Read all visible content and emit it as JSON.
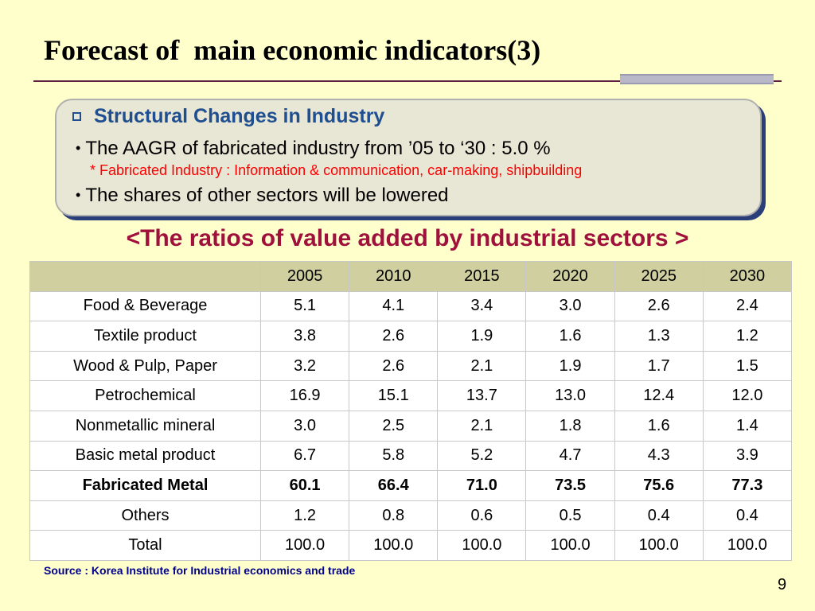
{
  "title": "Forecast of  main economic indicators(3)",
  "panel": {
    "heading": "Structural Changes in Industry",
    "bullet_1": "The AAGR of fabricated industry from ’05 to ‘30 : 5.0 %",
    "note": "* Fabricated Industry : Information & communication, car-making, shipbuilding",
    "bullet_2": "The shares of other sectors will be lowered"
  },
  "table_title": "<The ratios of value added by industrial sectors >",
  "table": {
    "columns": [
      "",
      "2005",
      "2010",
      "2015",
      "2020",
      "2025",
      "2030"
    ],
    "rows": [
      {
        "label": "Food & Beverage",
        "values": [
          "5.1",
          "4.1",
          "3.4",
          "3.0",
          "2.6",
          "2.4"
        ],
        "bold": false
      },
      {
        "label": "Textile product",
        "values": [
          "3.8",
          "2.6",
          "1.9",
          "1.6",
          "1.3",
          "1.2"
        ],
        "bold": false
      },
      {
        "label": "Wood & Pulp, Paper",
        "values": [
          "3.2",
          "2.6",
          "2.1",
          "1.9",
          "1.7",
          "1.5"
        ],
        "bold": false
      },
      {
        "label": "Petrochemical",
        "values": [
          "16.9",
          "15.1",
          "13.7",
          "13.0",
          "12.4",
          "12.0"
        ],
        "bold": false
      },
      {
        "label": "Nonmetallic mineral",
        "values": [
          "3.0",
          "2.5",
          "2.1",
          "1.8",
          "1.6",
          "1.4"
        ],
        "bold": false
      },
      {
        "label": "Basic metal product",
        "values": [
          "6.7",
          "5.8",
          "5.2",
          "4.7",
          "4.3",
          "3.9"
        ],
        "bold": false
      },
      {
        "label": "Fabricated Metal",
        "values": [
          "60.1",
          "66.4",
          "71.0",
          "73.5",
          "75.6",
          "77.3"
        ],
        "bold": true
      },
      {
        "label": "Others",
        "values": [
          "1.2",
          "0.8",
          "0.6",
          "0.5",
          "0.4",
          "0.4"
        ],
        "bold": false
      },
      {
        "label": "Total",
        "values": [
          "100.0",
          "100.0",
          "100.0",
          "100.0",
          "100.0",
          "100.0"
        ],
        "bold": false
      }
    ]
  },
  "source": "Source : Korea Institute for Industrial economics and trade",
  "page_number": "9",
  "colors": {
    "background": "#ffffcc",
    "heading_blue": "#1f4f91",
    "note_red": "#ff0000",
    "table_title_red": "#a0103c",
    "table_header_bg": "#cfcf9f"
  }
}
